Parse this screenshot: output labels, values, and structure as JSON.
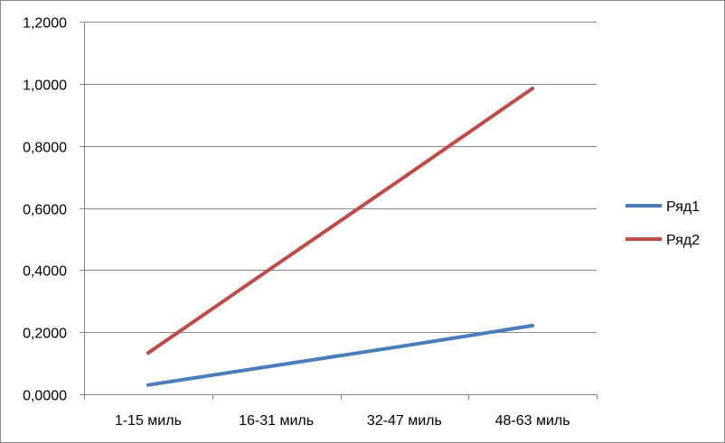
{
  "chart_data": {
    "type": "line",
    "categories": [
      "1-15 миль",
      "16-31 миль",
      "32-47 миль",
      "48-63 миль"
    ],
    "series": [
      {
        "name": "Ряд1",
        "color": "#4a7ebb",
        "values": [
          0.03,
          0.093,
          0.156,
          0.221
        ]
      },
      {
        "name": "Ряд2",
        "color": "#be4b48",
        "values": [
          0.133,
          0.417,
          0.7,
          0.985
        ]
      }
    ],
    "y_ticks": [
      "0,0000",
      "0,2000",
      "0,4000",
      "0,6000",
      "0,8000",
      "1,0000",
      "1,2000"
    ],
    "ylim": [
      0,
      1.2
    ],
    "grid": "horizontal",
    "legend_position": "right"
  }
}
